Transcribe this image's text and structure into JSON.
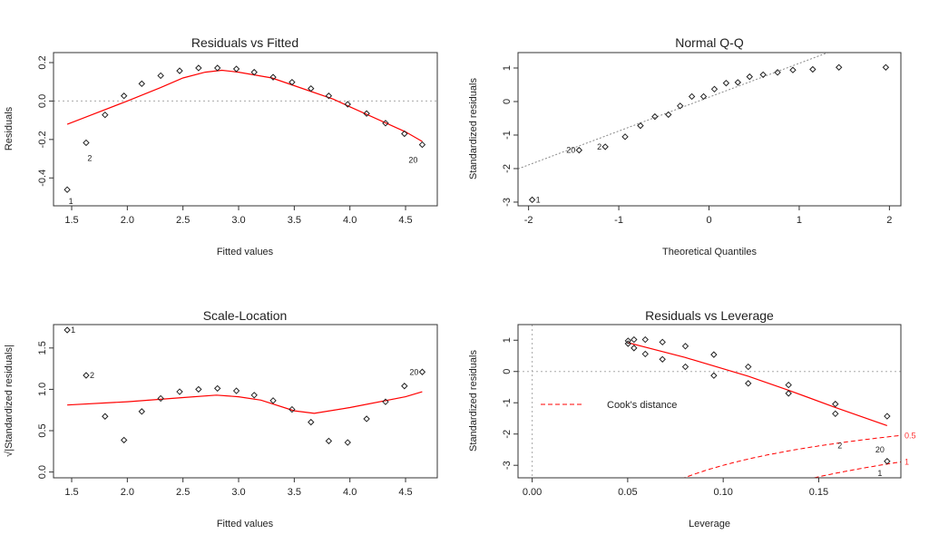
{
  "chart_data": [
    {
      "type": "scatter",
      "title": "Residuals vs Fitted",
      "xlabel": "Fitted values",
      "ylabel": "Residuals",
      "xlim": [
        1.337,
        4.785
      ],
      "ylim": [
        -0.545,
        0.252
      ],
      "xticks": [
        1.5,
        2.0,
        2.5,
        3.0,
        3.5,
        4.0,
        4.5
      ],
      "yticks": [
        -0.4,
        -0.2,
        0.0,
        0.2
      ],
      "xtick_labels": [
        "1.5",
        "2.0",
        "2.5",
        "3.0",
        "3.5",
        "4.0",
        "4.5"
      ],
      "ytick_labels": [
        "-0.4",
        "-0.2",
        "0.0",
        "0.2"
      ],
      "hline": 0,
      "x": [
        1.46,
        1.63,
        1.8,
        1.97,
        2.13,
        2.3,
        2.47,
        2.64,
        2.81,
        2.98,
        3.14,
        3.31,
        3.48,
        3.65,
        3.81,
        3.98,
        4.15,
        4.32,
        4.49,
        4.65
      ],
      "y": [
        -0.461,
        -0.217,
        -0.072,
        0.027,
        0.09,
        0.132,
        0.157,
        0.172,
        0.172,
        0.167,
        0.15,
        0.124,
        0.098,
        0.065,
        0.027,
        -0.017,
        -0.065,
        -0.115,
        -0.17,
        -0.227
      ],
      "smooth": {
        "x": [
          1.46,
          2.0,
          2.3,
          2.5,
          2.7,
          2.85,
          3.0,
          3.3,
          3.5,
          3.85,
          4.0,
          4.5,
          4.65
        ],
        "y": [
          -0.121,
          0.0,
          0.07,
          0.12,
          0.15,
          0.16,
          0.15,
          0.12,
          0.08,
          0.01,
          -0.03,
          -0.16,
          -0.21
        ]
      },
      "point_labels": [
        {
          "index": 0,
          "text": "1",
          "pos": "below"
        },
        {
          "index": 1,
          "text": "2",
          "pos": "below"
        },
        {
          "index": 19,
          "text": "20",
          "pos": "below-left"
        }
      ],
      "colors": {
        "points": "#222222",
        "smooth": "#ff0000",
        "reference": "#aaaaaa"
      }
    },
    {
      "type": "scatter",
      "title": "Normal Q-Q",
      "xlabel": "Theoretical Quantiles",
      "ylabel": "Standardized residuals",
      "xlim": [
        -2.117,
        2.127
      ],
      "ylim": [
        -3.11,
        1.46
      ],
      "xticks": [
        -2,
        -1,
        0,
        1,
        2
      ],
      "yticks": [
        -3,
        -2,
        -1,
        0,
        1
      ],
      "xtick_labels": [
        "-2",
        "-1",
        "0",
        "1",
        "2"
      ],
      "ytick_labels": [
        "-3",
        "-2",
        "-1",
        "0",
        "1"
      ],
      "x": [
        -1.96,
        -1.44,
        -1.15,
        -0.93,
        -0.76,
        -0.6,
        -0.45,
        -0.32,
        -0.19,
        -0.06,
        0.06,
        0.19,
        0.32,
        0.45,
        0.6,
        0.76,
        0.93,
        1.15,
        1.44,
        1.96
      ],
      "y": [
        -2.93,
        -1.45,
        -1.35,
        -1.05,
        -0.72,
        -0.45,
        -0.39,
        -0.13,
        0.15,
        0.15,
        0.37,
        0.55,
        0.57,
        0.74,
        0.8,
        0.87,
        0.94,
        0.96,
        1.02,
        1.02
      ],
      "qq_line": {
        "intercept": 0.13,
        "slope": 1.01
      },
      "point_labels": [
        {
          "index": 0,
          "text": "1",
          "pos": "right"
        },
        {
          "index": 1,
          "text": "20",
          "pos": "left"
        },
        {
          "index": 2,
          "text": "2",
          "pos": "left"
        }
      ],
      "colors": {
        "points": "#222222",
        "reference": "#888888"
      }
    },
    {
      "type": "scatter",
      "title": "Scale-Location",
      "xlabel": "Fitted values",
      "ylabel": "√|Standardized residuals|",
      "xlim": [
        1.337,
        4.785
      ],
      "ylim": [
        -0.07,
        1.783
      ],
      "xticks": [
        1.5,
        2.0,
        2.5,
        3.0,
        3.5,
        4.0,
        4.5
      ],
      "yticks": [
        0.0,
        0.5,
        1.0,
        1.5
      ],
      "xtick_labels": [
        "1.5",
        "2.0",
        "2.5",
        "3.0",
        "3.5",
        "4.0",
        "4.5"
      ],
      "ytick_labels": [
        "0.0",
        "0.5",
        "1.0",
        "1.5"
      ],
      "x": [
        1.46,
        1.63,
        1.8,
        1.97,
        2.13,
        2.3,
        2.47,
        2.64,
        2.81,
        2.98,
        3.14,
        3.31,
        3.48,
        3.65,
        3.81,
        3.98,
        4.15,
        4.32,
        4.49,
        4.65
      ],
      "y": [
        1.717,
        1.169,
        0.673,
        0.386,
        0.732,
        0.89,
        0.971,
        1.0,
        1.011,
        0.982,
        0.93,
        0.864,
        0.757,
        0.603,
        0.375,
        0.357,
        0.643,
        0.849,
        1.04,
        1.21
      ],
      "smooth": {
        "x": [
          1.46,
          2.0,
          2.5,
          2.8,
          3.0,
          3.2,
          3.5,
          3.68,
          4.0,
          4.5,
          4.65
        ],
        "y": [
          0.81,
          0.85,
          0.9,
          0.93,
          0.91,
          0.87,
          0.74,
          0.71,
          0.78,
          0.91,
          0.97
        ]
      },
      "point_labels": [
        {
          "index": 0,
          "text": "1",
          "pos": "right"
        },
        {
          "index": 1,
          "text": "2",
          "pos": "right"
        },
        {
          "index": 19,
          "text": "20",
          "pos": "left"
        }
      ],
      "colors": {
        "points": "#222222",
        "smooth": "#ff0000"
      }
    },
    {
      "type": "scatter",
      "title": "Residuals vs Leverage",
      "xlabel": "Leverage",
      "ylabel": "Standardized residuals",
      "xlim": [
        -0.0074,
        0.193
      ],
      "ylim": [
        -3.4,
        1.5
      ],
      "xticks": [
        0.0,
        0.05,
        0.1,
        0.15
      ],
      "yticks": [
        -3,
        -2,
        -1,
        0,
        1
      ],
      "xtick_labels": [
        "0.00",
        "0.05",
        "0.10",
        "0.15"
      ],
      "ytick_labels": [
        "-3",
        "-2",
        "-1",
        "0",
        "1"
      ],
      "hline": 0,
      "vline": 0,
      "x": [
        0.0502,
        0.0502,
        0.0533,
        0.0533,
        0.0592,
        0.0592,
        0.0682,
        0.0682,
        0.0802,
        0.0802,
        0.0951,
        0.0951,
        0.1131,
        0.1131,
        0.1342,
        0.1342,
        0.1587,
        0.1587,
        0.1858,
        0.1858
      ],
      "y": [
        0.98,
        0.89,
        1.02,
        0.75,
        1.02,
        0.56,
        0.94,
        0.39,
        0.81,
        0.15,
        0.54,
        -0.13,
        0.15,
        -0.38,
        -0.43,
        -0.7,
        -1.04,
        -1.35,
        -1.43,
        -2.87
      ],
      "smooth": {
        "x": [
          0.0502,
          0.08,
          0.1131,
          0.1342,
          0.1587,
          0.1858
        ],
        "y": [
          0.92,
          0.45,
          -0.15,
          -0.6,
          -1.15,
          -1.73
        ]
      },
      "cooks_levels": [
        0.5,
        1
      ],
      "cooks_level_labels": [
        "0.5",
        "1"
      ],
      "n_params": 2,
      "legend": {
        "text": "Cook's distance",
        "placement": "left"
      },
      "point_labels": [
        {
          "index": 17,
          "text": "2",
          "pos": "below-far"
        },
        {
          "index": 18,
          "text": "20",
          "pos": "below-left-far"
        },
        {
          "index": 19,
          "text": "1",
          "pos": "below-left-far"
        }
      ],
      "colors": {
        "points": "#222222",
        "smooth": "#ff0000",
        "cooks": "#ff0000",
        "reference": "#aaaaaa"
      }
    }
  ]
}
